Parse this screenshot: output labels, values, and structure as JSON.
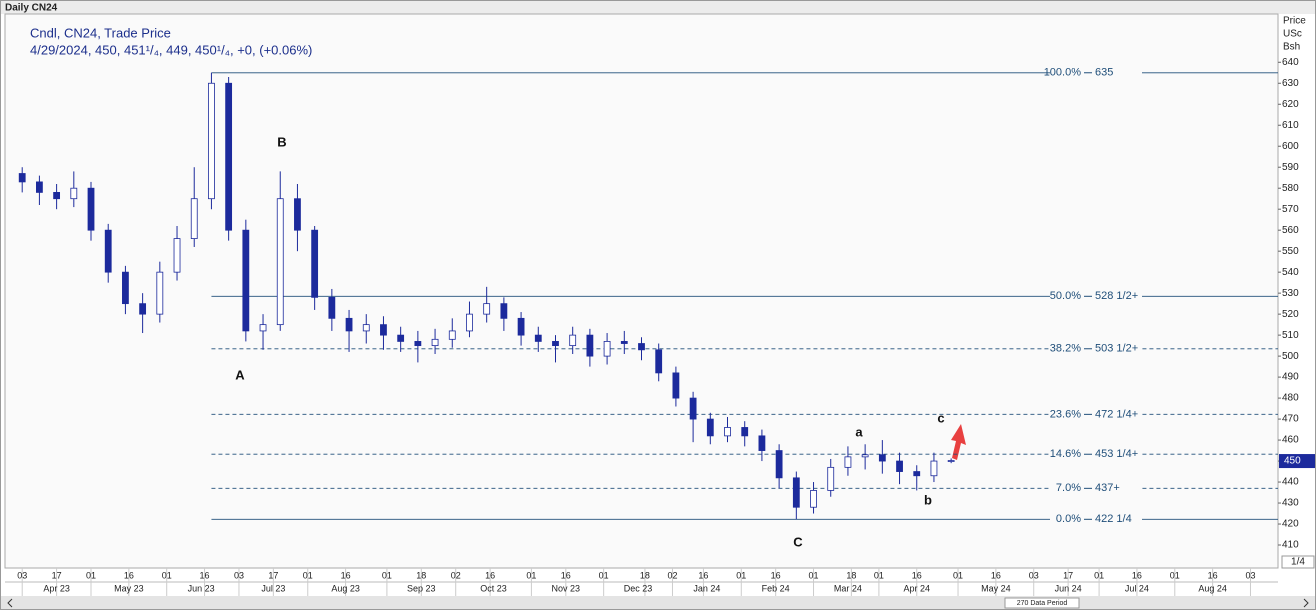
{
  "chart_data": {
    "type": "candlestick",
    "title": "Daily CN24",
    "subtitle": "Cndl, CN24, Trade Price",
    "quote": "4/29/2024, 450, 451¹/₄, 449, 450¹/₄, +0, (+0.06%)",
    "y_axis_label": [
      "Price",
      "USc",
      "Bsh"
    ],
    "tick_size": "1/4",
    "data_period": "270 Data Period",
    "current_price": 450,
    "color": "#1c2a9c",
    "x": [
      0,
      5,
      10,
      15,
      20,
      25,
      30,
      35,
      40,
      45,
      50,
      55,
      60,
      65,
      70,
      75,
      80,
      85,
      90,
      95,
      100,
      105,
      110,
      115,
      120,
      125,
      130,
      135,
      140,
      145,
      150,
      155,
      160,
      165,
      170,
      175,
      180,
      185,
      190,
      195,
      200,
      205,
      210,
      215,
      220,
      225,
      230,
      235,
      240,
      245,
      250,
      255,
      260,
      265,
      270
    ],
    "open": [
      587,
      583,
      578,
      575,
      580,
      560,
      540,
      525,
      520,
      540,
      556,
      575,
      630,
      560,
      512,
      515,
      575,
      560,
      528,
      518,
      512,
      515,
      510,
      507,
      505,
      508,
      512,
      520,
      525,
      518,
      510,
      507,
      505,
      510,
      500,
      507,
      506,
      503,
      492,
      480,
      470,
      462,
      466,
      462,
      455,
      442,
      428,
      436,
      447,
      452,
      453,
      450,
      445,
      443,
      450
    ],
    "high": [
      590,
      586,
      582,
      588,
      583,
      563,
      543,
      530,
      545,
      562,
      590,
      635,
      633,
      565,
      520,
      588,
      582,
      562,
      532,
      522,
      520,
      519,
      514,
      512,
      513,
      518,
      526,
      533,
      528,
      521,
      514,
      510,
      514,
      513,
      511,
      512,
      509,
      506,
      495,
      483,
      473,
      471,
      469,
      465,
      458,
      445,
      440,
      451,
      457,
      458,
      460,
      454,
      448,
      454,
      451.25
    ],
    "low": [
      578,
      572,
      570,
      571,
      555,
      535,
      520,
      511,
      516,
      536,
      552,
      570,
      555,
      507,
      503,
      512,
      550,
      522,
      512,
      502,
      506,
      503,
      502,
      497,
      501,
      504,
      509,
      516,
      512,
      505,
      502,
      497,
      501,
      495,
      496,
      501,
      498,
      488,
      476,
      459,
      458,
      459,
      457,
      450,
      437,
      422.25,
      425,
      433,
      443,
      446,
      444,
      439,
      436,
      440,
      449
    ],
    "close": [
      583,
      578,
      575,
      580,
      560,
      540,
      525,
      520,
      540,
      556,
      575,
      630,
      560,
      512,
      515,
      575,
      560,
      528,
      518,
      512,
      515,
      510,
      507,
      505,
      508,
      512,
      520,
      525,
      518,
      510,
      507,
      505,
      510,
      500,
      507,
      506,
      503,
      492,
      480,
      470,
      462,
      466,
      462,
      455,
      442,
      428,
      436,
      447,
      452,
      453,
      450,
      445,
      443,
      450,
      450.25
    ],
    "xlim": [
      -5,
      365
    ],
    "xticks": [
      {
        "value": 0,
        "label": "03"
      },
      {
        "value": 10,
        "label": "17"
      },
      {
        "value": 20,
        "label": "01"
      },
      {
        "value": 31,
        "label": "16"
      },
      {
        "value": 42,
        "label": "01"
      },
      {
        "value": 53,
        "label": "16"
      },
      {
        "value": 63,
        "label": "03"
      },
      {
        "value": 73,
        "label": "17"
      },
      {
        "value": 83,
        "label": "01"
      },
      {
        "value": 94,
        "label": "16"
      },
      {
        "value": 106,
        "label": "01"
      },
      {
        "value": 116,
        "label": "18"
      },
      {
        "value": 126,
        "label": "02"
      },
      {
        "value": 136,
        "label": "16"
      },
      {
        "value": 148,
        "label": "01"
      },
      {
        "value": 158,
        "label": "16"
      },
      {
        "value": 169,
        "label": "01"
      },
      {
        "value": 181,
        "label": "18"
      },
      {
        "value": 189,
        "label": "02"
      },
      {
        "value": 198,
        "label": "16"
      },
      {
        "value": 209,
        "label": "01"
      },
      {
        "value": 219,
        "label": "16"
      },
      {
        "value": 230,
        "label": "01"
      },
      {
        "value": 241,
        "label": "18"
      },
      {
        "value": 249,
        "label": "01"
      },
      {
        "value": 260,
        "label": "16"
      },
      {
        "value": 272,
        "label": "01"
      },
      {
        "value": 283,
        "label": "16"
      },
      {
        "value": 294,
        "label": "03"
      },
      {
        "value": 304,
        "label": "17"
      },
      {
        "value": 313,
        "label": "01"
      },
      {
        "value": 324,
        "label": "16"
      },
      {
        "value": 335,
        "label": "01"
      },
      {
        "value": 346,
        "label": "16"
      },
      {
        "value": 357,
        "label": "03"
      }
    ],
    "months": [
      {
        "value": 10,
        "label": "Apr 23"
      },
      {
        "value": 31,
        "label": "May 23"
      },
      {
        "value": 52,
        "label": "Jun 23"
      },
      {
        "value": 73,
        "label": "Jul 23"
      },
      {
        "value": 94,
        "label": "Aug 23"
      },
      {
        "value": 116,
        "label": "Sep 23"
      },
      {
        "value": 137,
        "label": "Oct 23"
      },
      {
        "value": 158,
        "label": "Nov 23"
      },
      {
        "value": 179,
        "label": "Dec 23"
      },
      {
        "value": 199,
        "label": "Jan 24"
      },
      {
        "value": 219,
        "label": "Feb 24"
      },
      {
        "value": 240,
        "label": "Mar 24"
      },
      {
        "value": 260,
        "label": "Apr 24"
      },
      {
        "value": 283,
        "label": "May 24"
      },
      {
        "value": 304,
        "label": "Jun 24"
      },
      {
        "value": 324,
        "label": "Jul 24"
      },
      {
        "value": 346,
        "label": "Aug 24"
      }
    ],
    "ylim": [
      400,
      663
    ],
    "yticks": [
      410,
      420,
      430,
      440,
      450,
      460,
      470,
      480,
      490,
      500,
      510,
      520,
      530,
      540,
      550,
      560,
      570,
      580,
      590,
      600,
      610,
      620,
      630,
      640
    ],
    "levels": [
      {
        "name": "100.0%",
        "value": 635,
        "label": "635",
        "dashed": false
      },
      {
        "name": "50.0%",
        "value": 528.5,
        "label": "528 1/2+",
        "dashed": false
      },
      {
        "name": "38.2%",
        "value": 503.5,
        "label": "503 1/2+",
        "dashed": true
      },
      {
        "name": "23.6%",
        "value": 472.25,
        "label": "472 1/4+",
        "dashed": true
      },
      {
        "name": "14.6%",
        "value": 453.25,
        "label": "453 1/4+",
        "dashed": true
      },
      {
        "name": "7.0%",
        "value": 437,
        "label": "437+",
        "dashed": true
      },
      {
        "name": "0.0%",
        "value": 422.25,
        "label": "422 1/4",
        "dashed": false
      }
    ],
    "annotations": [
      "A",
      "B",
      "C",
      "a",
      "b",
      "c"
    ]
  }
}
